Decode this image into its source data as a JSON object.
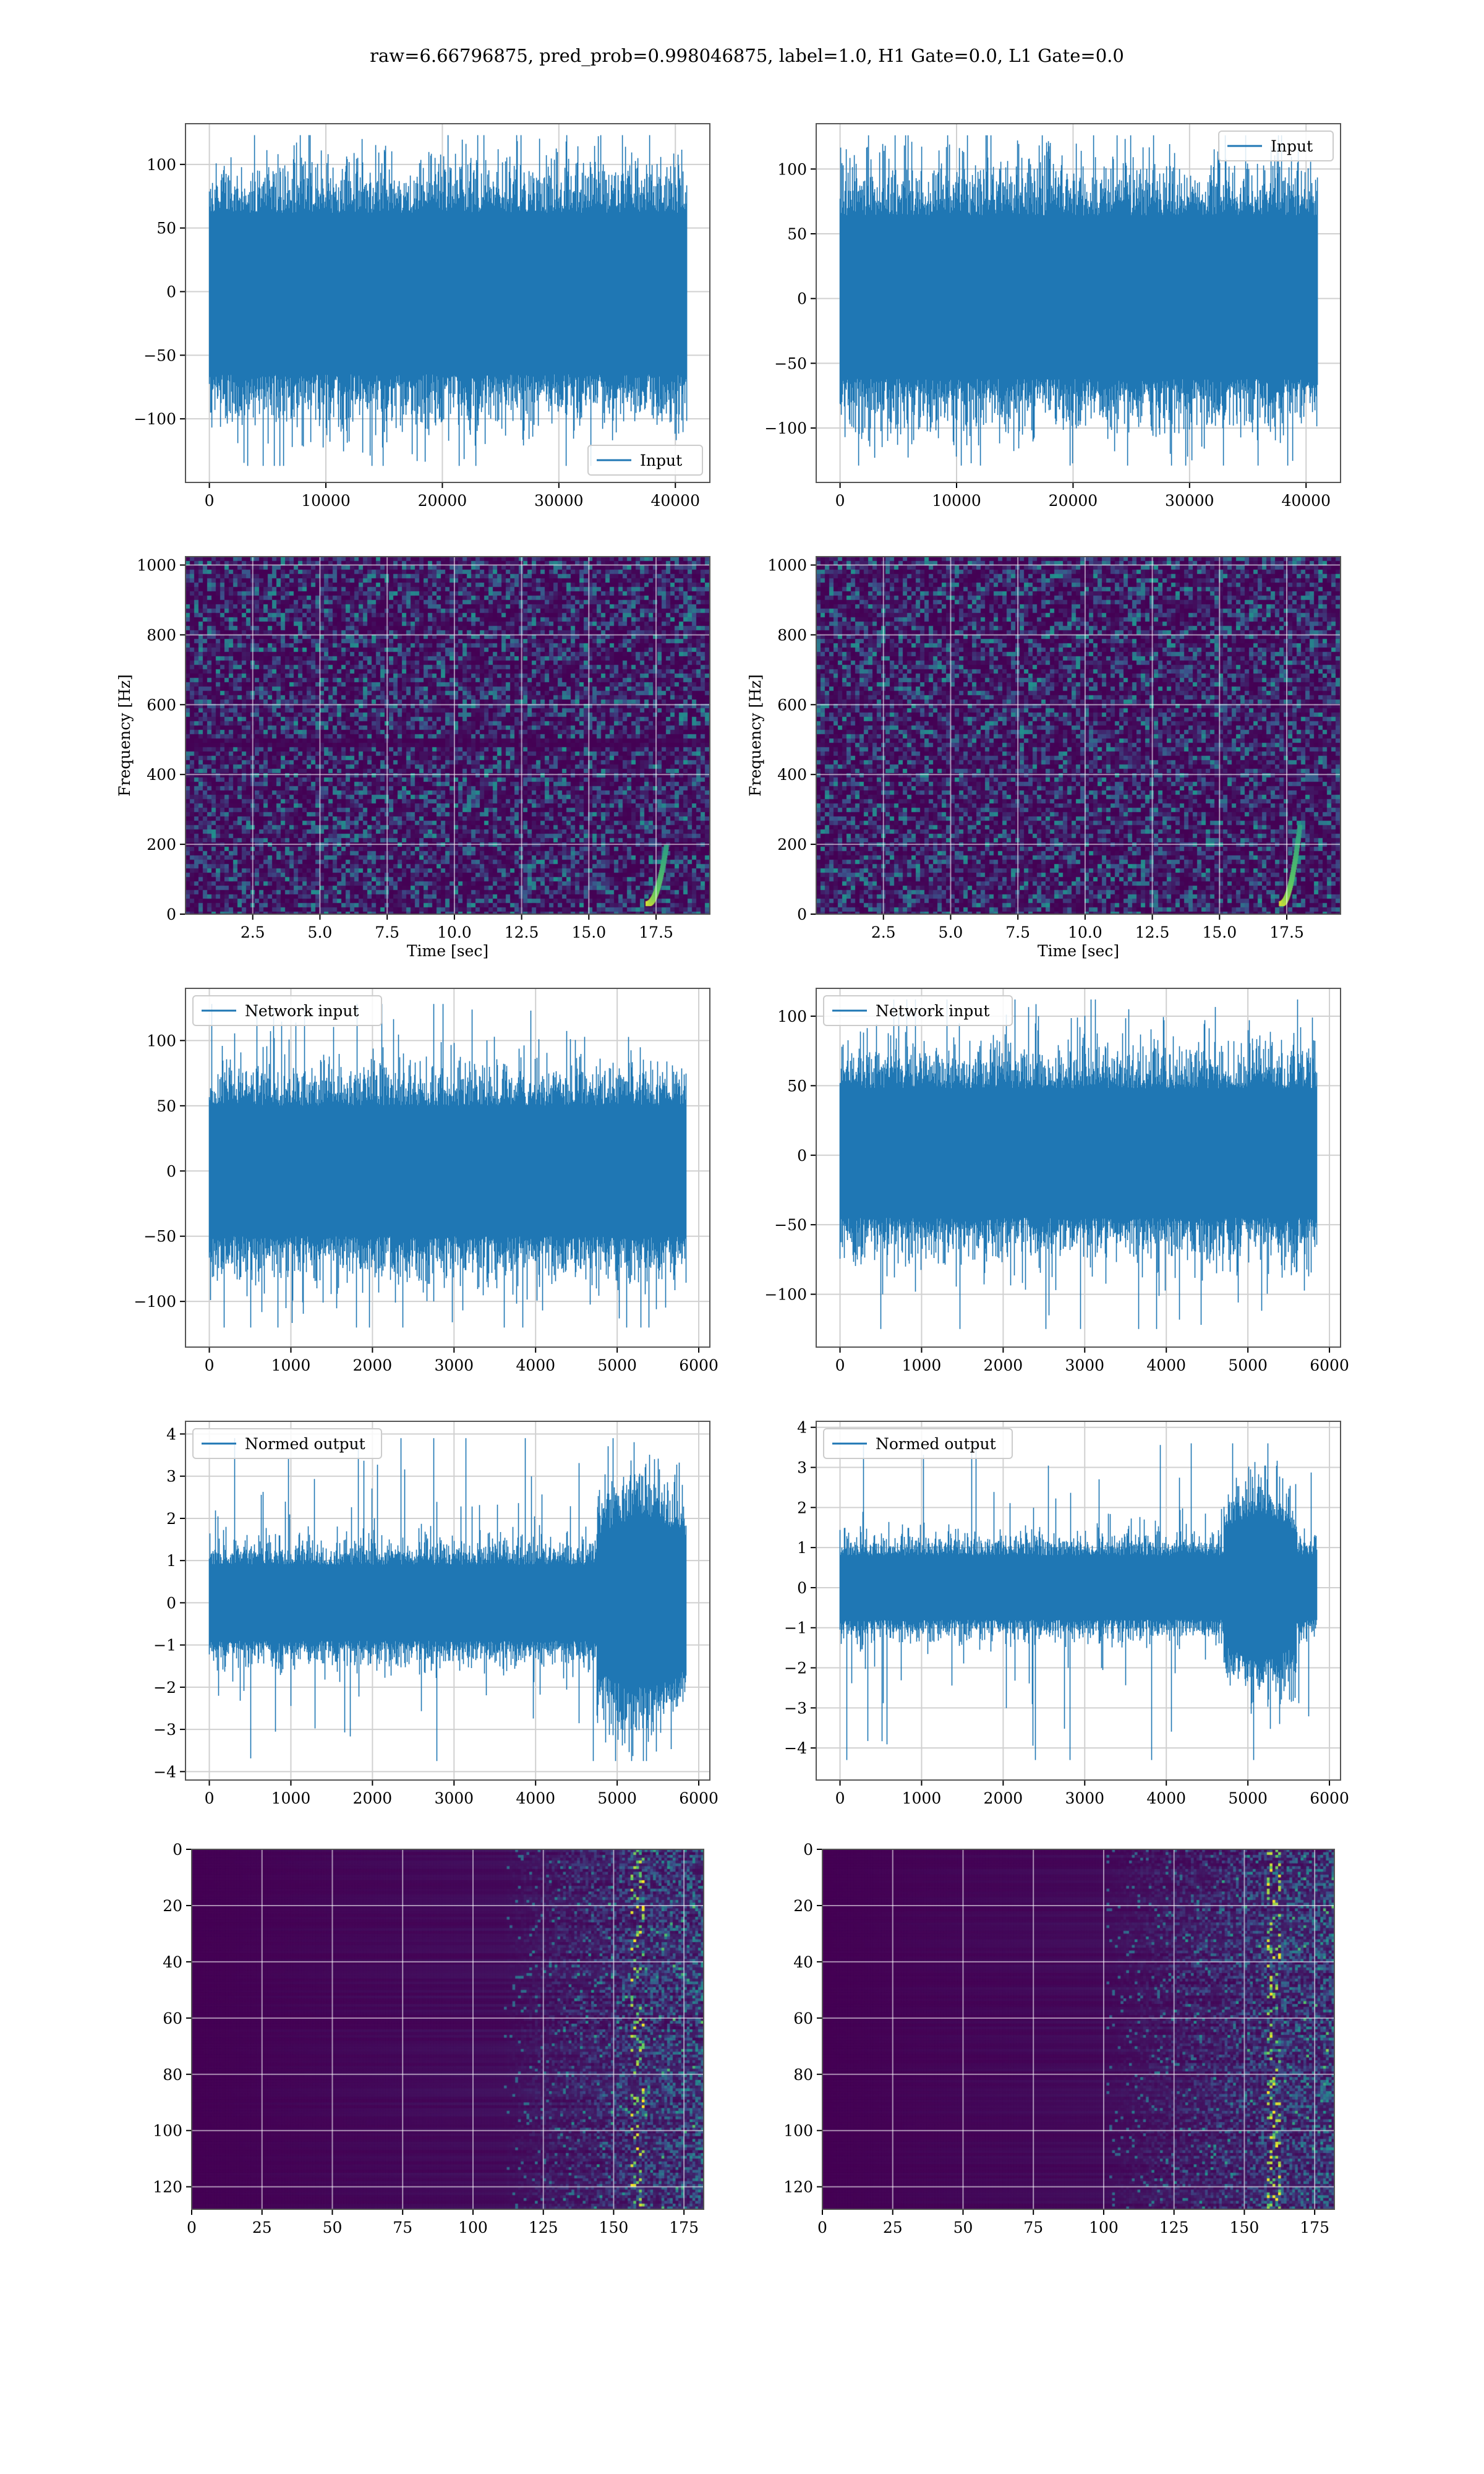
{
  "figure": {
    "suptitle": "raw=6.66796875, pred_prob=0.998046875, label=1.0, H1 Gate=0.0, L1 Gate=0.0",
    "colors": {
      "line": "#1f77b4",
      "grid": "#d0d0d0",
      "frame": "#555555",
      "viridis_low": "#440154",
      "viridis_mid": "#21918c",
      "viridis_high": "#fde725"
    }
  },
  "chart_data": [
    {
      "id": "h1-input",
      "type": "line",
      "legend": "Input",
      "legend_loc": "lower-right",
      "xlim": [
        -2048,
        42960
      ],
      "ylim": [
        -150,
        132
      ],
      "xticks": [
        0,
        10000,
        20000,
        30000,
        40000
      ],
      "xticklabels": [
        "0",
        "10000",
        "20000",
        "30000",
        "40000"
      ],
      "yticks": [
        -100,
        -50,
        0,
        50,
        100
      ],
      "yticklabels": [
        "−100",
        "−50",
        "0",
        "50",
        "100"
      ],
      "signal": {
        "x_start": 0,
        "x_end": 40960,
        "band": [
          -65,
          62
        ],
        "peak_max": 123,
        "peak_min": -137
      },
      "grid": true
    },
    {
      "id": "l1-input",
      "type": "line",
      "legend": "Input",
      "legend_loc": "upper-right",
      "xlim": [
        -2048,
        42960
      ],
      "ylim": [
        -142,
        135
      ],
      "xticks": [
        0,
        10000,
        20000,
        30000,
        40000
      ],
      "xticklabels": [
        "0",
        "10000",
        "20000",
        "30000",
        "40000"
      ],
      "yticks": [
        -100,
        -50,
        0,
        50,
        100
      ],
      "yticklabels": [
        "−100",
        "−50",
        "0",
        "50",
        "100"
      ],
      "signal": {
        "x_start": 0,
        "x_end": 40960,
        "band": [
          -62,
          64
        ],
        "peak_max": 126,
        "peak_min": -129
      },
      "grid": true
    },
    {
      "id": "h1-spectrogram",
      "type": "heatmap",
      "xlabel": "Time [sec]",
      "ylabel": "Frequency [Hz]",
      "xlim": [
        0,
        19.5
      ],
      "ylim": [
        0,
        1024
      ],
      "xticks": [
        2.5,
        5.0,
        7.5,
        10.0,
        12.5,
        15.0,
        17.5
      ],
      "xticklabels": [
        "2.5",
        "5.0",
        "7.5",
        "10.0",
        "12.5",
        "15.0",
        "17.5"
      ],
      "yticks": [
        0,
        200,
        400,
        600,
        800,
        1000
      ],
      "yticklabels": [
        "0",
        "200",
        "400",
        "600",
        "800",
        "1000"
      ],
      "dark_band_hz": [
        480,
        505
      ],
      "chirp": {
        "t_start": 17.2,
        "t_end": 17.9,
        "f_start": 30,
        "f_end": 200
      },
      "grid": true
    },
    {
      "id": "l1-spectrogram",
      "type": "heatmap",
      "xlabel": "Time [sec]",
      "ylabel": "Frequency [Hz]",
      "xlim": [
        0,
        19.5
      ],
      "ylim": [
        0,
        1024
      ],
      "xticks": [
        2.5,
        5.0,
        7.5,
        10.0,
        12.5,
        15.0,
        17.5
      ],
      "xticklabels": [
        "2.5",
        "5.0",
        "7.5",
        "10.0",
        "12.5",
        "15.0",
        "17.5"
      ],
      "yticks": [
        0,
        200,
        400,
        600,
        800,
        1000
      ],
      "yticklabels": [
        "0",
        "200",
        "400",
        "600",
        "800",
        "1000"
      ],
      "dark_band_hz": [],
      "chirp": {
        "t_start": 17.3,
        "t_end": 18.0,
        "f_start": 30,
        "f_end": 260
      },
      "grid": true
    },
    {
      "id": "h1-network-input",
      "type": "line",
      "legend": "Network input",
      "legend_loc": "upper-left",
      "xlim": [
        -292,
        6136
      ],
      "ylim": [
        -135,
        140
      ],
      "xticks": [
        0,
        1000,
        2000,
        3000,
        4000,
        5000,
        6000
      ],
      "xticklabels": [
        "0",
        "1000",
        "2000",
        "3000",
        "4000",
        "5000",
        "6000"
      ],
      "yticks": [
        -100,
        -50,
        0,
        50,
        100
      ],
      "yticklabels": [
        "−100",
        "−50",
        "0",
        "50",
        "100"
      ],
      "signal": {
        "x_start": 0,
        "x_end": 5844,
        "band": [
          -50,
          50
        ],
        "peak_max": 128,
        "peak_min": -120
      },
      "grid": true
    },
    {
      "id": "l1-network-input",
      "type": "line",
      "legend": "Network input",
      "legend_loc": "upper-left",
      "xlim": [
        -292,
        6136
      ],
      "ylim": [
        -138,
        120
      ],
      "xticks": [
        0,
        1000,
        2000,
        3000,
        4000,
        5000,
        6000
      ],
      "xticklabels": [
        "0",
        "1000",
        "2000",
        "3000",
        "4000",
        "5000",
        "6000"
      ],
      "yticks": [
        -100,
        -50,
        0,
        50,
        100
      ],
      "yticklabels": [
        "−100",
        "−50",
        "0",
        "50",
        "100"
      ],
      "signal": {
        "x_start": 0,
        "x_end": 5844,
        "band": [
          -45,
          48
        ],
        "peak_max": 112,
        "peak_min": -125
      },
      "grid": true
    },
    {
      "id": "h1-normed-output",
      "type": "line",
      "legend": "Normed output",
      "legend_loc": "upper-left",
      "xlim": [
        -292,
        6136
      ],
      "ylim": [
        -4.2,
        4.3
      ],
      "xticks": [
        0,
        1000,
        2000,
        3000,
        4000,
        5000,
        6000
      ],
      "xticklabels": [
        "0",
        "1000",
        "2000",
        "3000",
        "4000",
        "5000",
        "6000"
      ],
      "yticks": [
        -4,
        -3,
        -2,
        -1,
        0,
        1,
        2,
        3,
        4
      ],
      "yticklabels": [
        "−4",
        "−3",
        "−2",
        "−1",
        "0",
        "1",
        "2",
        "3",
        "4"
      ],
      "signal": {
        "x_start": 0,
        "x_end": 5844,
        "band": [
          -0.9,
          0.9
        ],
        "peak_max": 3.9,
        "peak_min": -3.75,
        "burst": {
          "x_start": 4750,
          "x_end": 5844,
          "band": [
            -2.0,
            2.0
          ]
        }
      },
      "grid": true
    },
    {
      "id": "l1-normed-output",
      "type": "line",
      "legend": "Normed output",
      "legend_loc": "upper-left",
      "xlim": [
        -292,
        6136
      ],
      "ylim": [
        -4.8,
        4.15
      ],
      "xticks": [
        0,
        1000,
        2000,
        3000,
        4000,
        5000,
        6000
      ],
      "xticklabels": [
        "0",
        "1000",
        "2000",
        "3000",
        "4000",
        "5000",
        "6000"
      ],
      "yticks": [
        -4,
        -3,
        -2,
        -1,
        0,
        1,
        2,
        3,
        4
      ],
      "yticklabels": [
        "−4",
        "−3",
        "−2",
        "−1",
        "0",
        "1",
        "2",
        "3",
        "4"
      ],
      "signal": {
        "x_start": 0,
        "x_end": 5844,
        "band": [
          -0.8,
          0.8
        ],
        "peak_max": 3.6,
        "peak_min": -4.3,
        "burst": {
          "x_start": 4700,
          "x_end": 5600,
          "band": [
            -1.8,
            1.8
          ]
        }
      },
      "grid": true
    },
    {
      "id": "h1-feature-map",
      "type": "heatmap",
      "xlim": [
        0,
        182
      ],
      "ylim": [
        128,
        0
      ],
      "xticks": [
        0,
        25,
        50,
        75,
        100,
        125,
        150,
        175
      ],
      "xticklabels": [
        "0",
        "25",
        "50",
        "75",
        "100",
        "125",
        "150",
        "175"
      ],
      "yticks": [
        0,
        20,
        40,
        60,
        80,
        100,
        120
      ],
      "yticklabels": [
        "0",
        "20",
        "40",
        "60",
        "80",
        "100",
        "120"
      ],
      "activity_start_col": 110,
      "hot_col": 158,
      "grid": true
    },
    {
      "id": "l1-feature-map",
      "type": "heatmap",
      "xlim": [
        0,
        182
      ],
      "ylim": [
        128,
        0
      ],
      "xticks": [
        0,
        25,
        50,
        75,
        100,
        125,
        150,
        175
      ],
      "xticklabels": [
        "0",
        "25",
        "50",
        "75",
        "100",
        "125",
        "150",
        "175"
      ],
      "yticks": [
        0,
        20,
        40,
        60,
        80,
        100,
        120
      ],
      "yticklabels": [
        "0",
        "20",
        "40",
        "60",
        "80",
        "100",
        "120"
      ],
      "activity_start_col": 100,
      "hot_col": 160,
      "grid": true
    }
  ]
}
